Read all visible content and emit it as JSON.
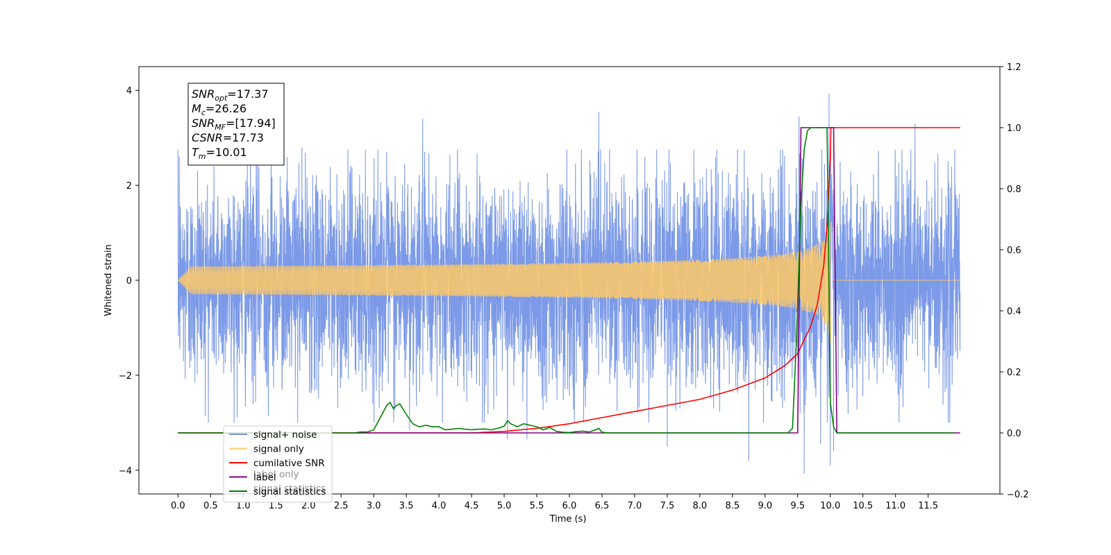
{
  "chart_data": {
    "type": "line",
    "xlabel": "Time (s)",
    "ylabel_left": "Whitened strain",
    "xlim": [
      -0.6,
      12.6
    ],
    "ylim_left": [
      -4.5,
      4.5
    ],
    "ylim_right": [
      -0.2,
      1.2
    ],
    "x_ticks": [
      "0.0",
      "0.5",
      "1.0",
      "1.5",
      "2.0",
      "2.5",
      "3.0",
      "3.5",
      "4.0",
      "4.5",
      "5.0",
      "5.5",
      "6.0",
      "6.5",
      "7.0",
      "7.5",
      "8.0",
      "8.5",
      "9.0",
      "9.5",
      "10.0",
      "10.5",
      "11.0",
      "11.5"
    ],
    "y_ticks_left": [
      "−4",
      "−2",
      "0",
      "2",
      "4"
    ],
    "y_ticks_right": [
      "−0.2",
      "0.0",
      "0.2",
      "0.4",
      "0.6",
      "0.8",
      "1.0",
      "1.2"
    ],
    "legend": {
      "placement": "lower-left",
      "entries": [
        {
          "label": "signal+ noise",
          "color": "#7595e6"
        },
        {
          "label": "signal only",
          "color": "#ffc966"
        },
        {
          "label": "cumilative SNR",
          "color": "#ff0000"
        },
        {
          "label": "label",
          "color": "#800080"
        },
        {
          "label": "signal statistics",
          "color": "#008000"
        }
      ]
    },
    "hidden_legend_labels": [
      "label only",
      "signal statistics"
    ],
    "info_box": {
      "lines": [
        {
          "name": "SNR",
          "sub": "opt",
          "value": "=17.37"
        },
        {
          "name": "M",
          "sub": "c",
          "value": "=26.26"
        },
        {
          "name": "SNR",
          "sub": "MF",
          "value": "=[17.94]"
        },
        {
          "name": "CSNR",
          "sub": "",
          "value": "=17.73"
        },
        {
          "name": "T",
          "sub": "m",
          "value": "=10.01"
        }
      ]
    },
    "series": [
      {
        "name": "signal+ noise",
        "axis": "left",
        "color": "#7595e6",
        "noise_sigma": 1.05,
        "x_range": [
          0.0,
          11.99
        ],
        "peak_points": [
          [
            0.02,
            2.6
          ],
          [
            0.3,
            2.3
          ],
          [
            1.2,
            2.85
          ],
          [
            1.9,
            2.8
          ],
          [
            3.75,
            3.4
          ],
          [
            6.45,
            3.55
          ],
          [
            9.52,
            3.45
          ],
          [
            9.98,
            3.93
          ],
          [
            11.3,
            3.3
          ],
          [
            3.55,
            -3.15
          ],
          [
            5.05,
            -3.35
          ],
          [
            5.35,
            -3.35
          ],
          [
            7.5,
            -3.5
          ],
          [
            8.75,
            -3.8
          ],
          [
            9.6,
            -4.08
          ],
          [
            9.85,
            -3.45
          ],
          [
            10.0,
            -3.9
          ],
          [
            10.05,
            -3.6
          ]
        ]
      },
      {
        "name": "signal only",
        "axis": "left",
        "color": "#ffc966",
        "merger_time": 10.01,
        "amplitude_at_merger": 1.5,
        "end_time": 10.05,
        "x_range": [
          0.0,
          11.99
        ]
      },
      {
        "name": "cumilative SNR",
        "axis": "right",
        "color": "#ff0000",
        "x": [
          0.0,
          4.5,
          5.0,
          5.5,
          6.0,
          6.5,
          7.0,
          7.5,
          8.0,
          8.5,
          9.0,
          9.3,
          9.5,
          9.7,
          9.8,
          9.9,
          9.95,
          10.0,
          10.01,
          11.99
        ],
        "y": [
          0.0,
          0.0,
          0.005,
          0.015,
          0.03,
          0.05,
          0.07,
          0.09,
          0.11,
          0.14,
          0.18,
          0.22,
          0.26,
          0.35,
          0.42,
          0.55,
          0.68,
          0.9,
          1.0,
          1.0
        ]
      },
      {
        "name": "label",
        "axis": "right",
        "color": "#800080",
        "x": [
          0.0,
          9.5,
          9.55,
          10.05,
          10.1,
          11.99
        ],
        "y": [
          0.0,
          0.0,
          1.0,
          1.0,
          0.0,
          0.0
        ]
      },
      {
        "name": "signal statistics",
        "axis": "right",
        "color": "#008000",
        "x": [
          0.0,
          2.7,
          2.8,
          2.9,
          3.0,
          3.1,
          3.2,
          3.25,
          3.3,
          3.35,
          3.4,
          3.5,
          3.6,
          3.7,
          3.8,
          3.9,
          4.0,
          4.1,
          4.2,
          4.3,
          4.4,
          4.5,
          4.6,
          4.7,
          4.8,
          4.9,
          5.0,
          5.05,
          5.1,
          5.2,
          5.3,
          5.4,
          5.5,
          5.6,
          5.7,
          5.8,
          5.9,
          6.0,
          6.1,
          6.2,
          6.3,
          6.4,
          6.45,
          6.5,
          6.6,
          6.7,
          9.35,
          9.42,
          9.48,
          9.55,
          9.6,
          9.65,
          9.7,
          9.8,
          9.9,
          9.95,
          10.0,
          10.05,
          10.1,
          11.9
        ],
        "y": [
          0.0,
          0.0,
          0.003,
          0.003,
          0.01,
          0.05,
          0.09,
          0.1,
          0.08,
          0.09,
          0.095,
          0.06,
          0.03,
          0.02,
          0.025,
          0.02,
          0.02,
          0.01,
          0.012,
          0.015,
          0.012,
          0.01,
          0.012,
          0.013,
          0.01,
          0.015,
          0.022,
          0.04,
          0.03,
          0.02,
          0.03,
          0.025,
          0.02,
          0.01,
          0.018,
          0.005,
          0.002,
          0.001,
          0.004,
          0.006,
          0.003,
          0.01,
          0.015,
          0.002,
          0.0,
          0.0,
          0.0,
          0.015,
          0.3,
          0.75,
          0.93,
          0.99,
          1.0,
          1.0,
          1.0,
          1.0,
          0.1,
          0.02,
          0.0,
          0.0
        ]
      }
    ]
  }
}
